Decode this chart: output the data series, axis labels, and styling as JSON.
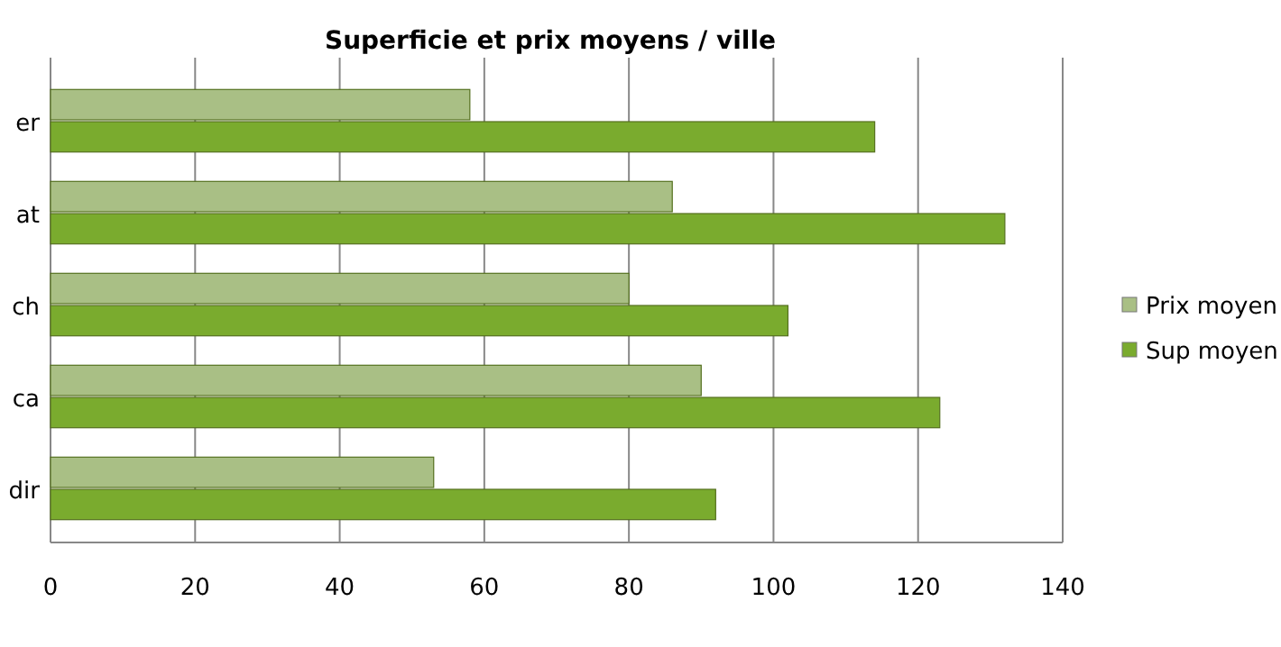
{
  "chart_data": {
    "type": "bar",
    "orientation": "horizontal",
    "title": "Superficie et prix moyens / ville",
    "categories": [
      "er",
      "at",
      "ch",
      "ca",
      "dir"
    ],
    "series": [
      {
        "name": "Prix moyen",
        "color": "#a9bf85",
        "values": [
          58,
          86,
          80,
          90,
          53
        ]
      },
      {
        "name": "Sup moyen",
        "color": "#7aab2e",
        "values": [
          114,
          132,
          102,
          123,
          92
        ]
      }
    ],
    "xlim": [
      0,
      140
    ],
    "xticks": [
      0,
      20,
      40,
      60,
      80,
      100,
      120,
      140
    ],
    "grid": "x",
    "legend": "right"
  }
}
